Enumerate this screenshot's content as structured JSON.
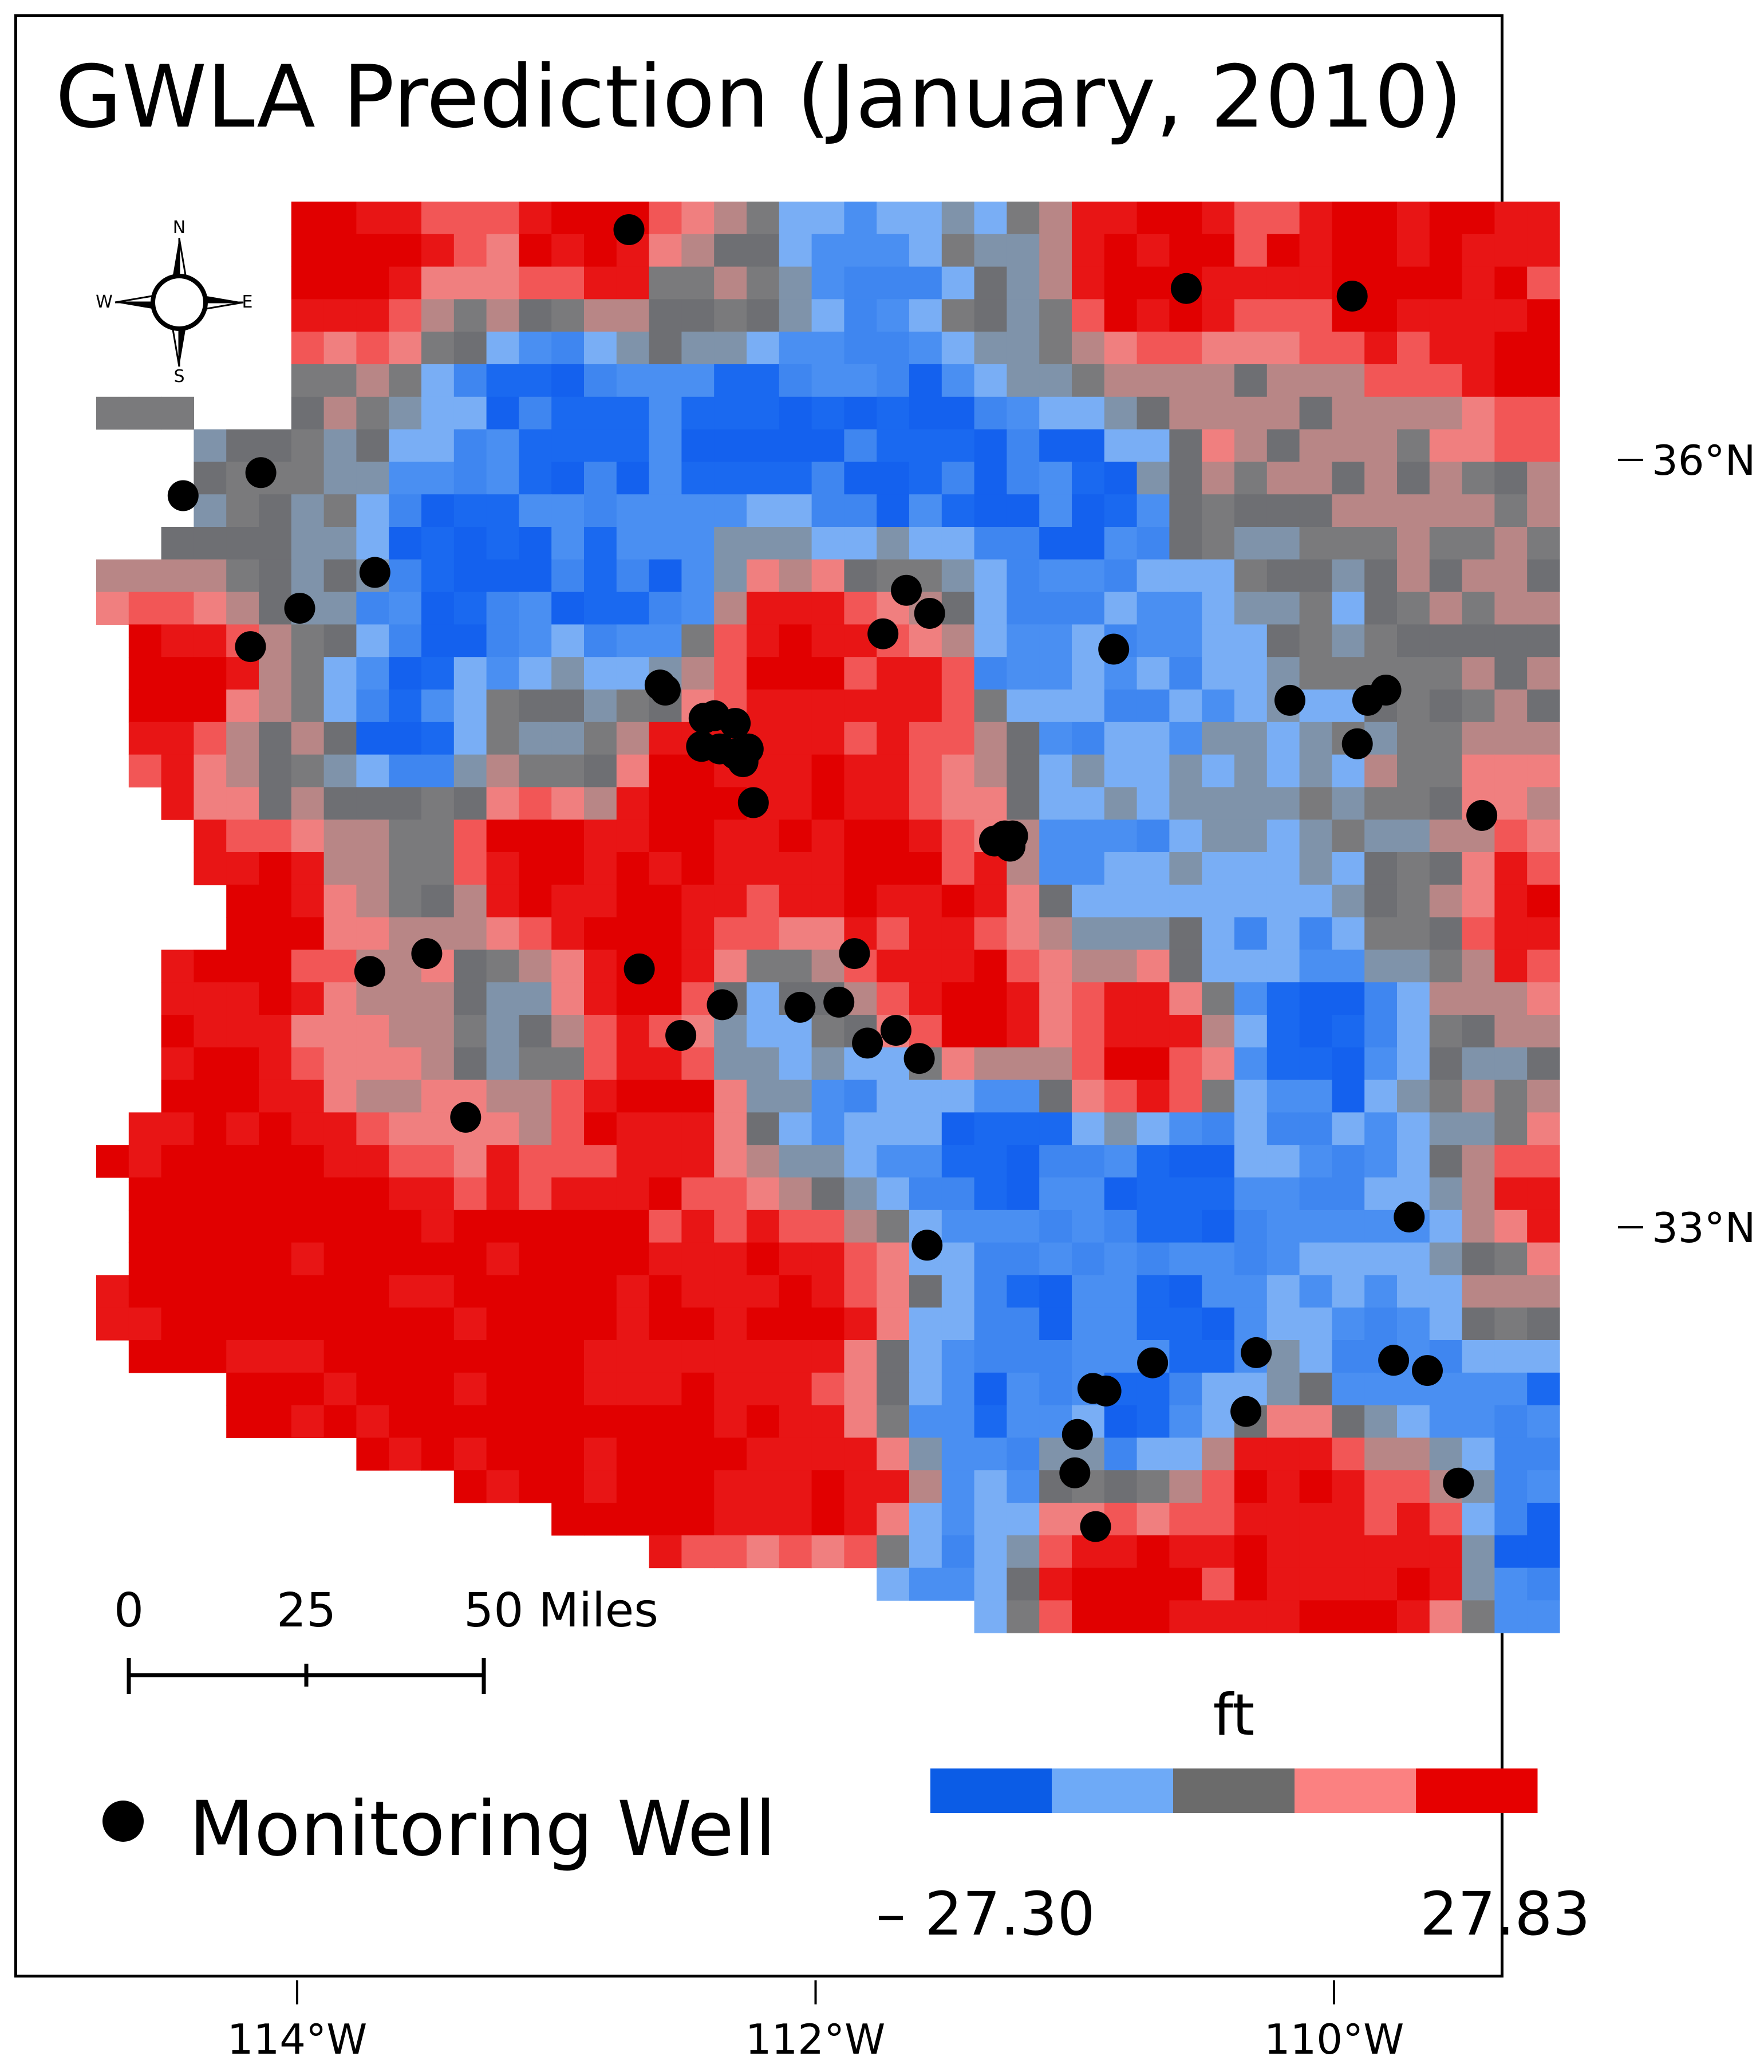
{
  "map": {
    "title": "GWLA Prediction (January, 2010)",
    "region": "Arizona",
    "extent_lon": [
      -115.0,
      -109.0
    ],
    "extent_lat": [
      31.3,
      37.0
    ],
    "graticule": {
      "lat_labels": [
        "36°N",
        "33°N"
      ],
      "lat_values": [
        36,
        33
      ],
      "lon_labels": [
        "114°W",
        "112°W",
        "110°W"
      ],
      "lon_values": [
        -114,
        -112,
        -110
      ]
    },
    "compass": {
      "n": "N",
      "s": "S",
      "e": "E",
      "w": "W"
    },
    "scale_bar": {
      "labels": [
        "0",
        "25",
        "50 Miles"
      ],
      "values_miles": [
        0,
        25,
        50
      ]
    },
    "legend": {
      "unit": "ft",
      "min_label": "– 27.30",
      "max_label": "27.83",
      "min_value": -27.3,
      "max_value": 27.83,
      "classes": [
        "#0b5ce6",
        "#6eaaf7",
        "#6b6b6b",
        "#fb8181",
        "#e60000"
      ],
      "point_label": "Monitoring Well"
    },
    "colors": {
      "deep_blue": "#1461ee",
      "blue": "#4a8ff2",
      "light_blue": "#79aef5",
      "gray": "#6e6f73",
      "blue_gray": "#7f93aa",
      "mauve": "#b88686",
      "pink": "#f07f7f",
      "light_red": "#f25656",
      "red": "#e81515",
      "dark_red": "#e10000",
      "well": "#000000"
    },
    "wells": [
      [
        -112.72,
        36.9
      ],
      [
        -110.57,
        36.67
      ],
      [
        -109.93,
        36.64
      ],
      [
        -114.44,
        35.86
      ],
      [
        -114.14,
        35.95
      ],
      [
        -113.7,
        35.56
      ],
      [
        -113.99,
        35.42
      ],
      [
        -114.18,
        35.27
      ],
      [
        -112.6,
        35.12
      ],
      [
        -112.58,
        35.1
      ],
      [
        -111.65,
        35.49
      ],
      [
        -111.56,
        35.4
      ],
      [
        -111.74,
        35.32
      ],
      [
        -110.85,
        35.26
      ],
      [
        -112.43,
        34.99
      ],
      [
        -112.39,
        35.0
      ],
      [
        -112.31,
        34.97
      ],
      [
        -112.44,
        34.88
      ],
      [
        -112.37,
        34.87
      ],
      [
        -112.31,
        34.85
      ],
      [
        -112.26,
        34.87
      ],
      [
        -112.28,
        34.82
      ],
      [
        -112.24,
        34.66
      ],
      [
        -110.17,
        35.06
      ],
      [
        -109.87,
        35.06
      ],
      [
        -109.8,
        35.1
      ],
      [
        -109.91,
        34.89
      ],
      [
        -109.43,
        34.61
      ],
      [
        -111.31,
        34.51
      ],
      [
        -111.27,
        34.53
      ],
      [
        -111.24,
        34.53
      ],
      [
        -111.25,
        34.49
      ],
      [
        -113.72,
        34.0
      ],
      [
        -113.5,
        34.07
      ],
      [
        -112.68,
        34.01
      ],
      [
        -111.85,
        34.07
      ],
      [
        -112.36,
        33.87
      ],
      [
        -112.06,
        33.86
      ],
      [
        -111.91,
        33.88
      ],
      [
        -112.52,
        33.75
      ],
      [
        -111.8,
        33.72
      ],
      [
        -111.69,
        33.77
      ],
      [
        -111.6,
        33.66
      ],
      [
        -113.35,
        33.43
      ],
      [
        -109.71,
        33.04
      ],
      [
        -111.57,
        32.93
      ],
      [
        -110.3,
        32.51
      ],
      [
        -110.7,
        32.47
      ],
      [
        -110.88,
        32.36
      ],
      [
        -110.93,
        32.37
      ],
      [
        -109.77,
        32.48
      ],
      [
        -109.64,
        32.44
      ],
      [
        -110.34,
        32.28
      ],
      [
        -110.99,
        32.19
      ],
      [
        -111.0,
        32.04
      ],
      [
        -109.52,
        32.0
      ],
      [
        -110.92,
        31.83
      ]
    ]
  }
}
